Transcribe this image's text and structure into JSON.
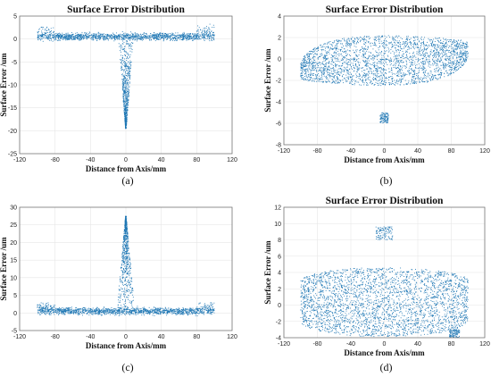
{
  "chart_data": [
    {
      "type": "scatter",
      "label": "(a)",
      "title": "Surface Error Distribution",
      "xlabel": "Distance from Axis/mm",
      "ylabel": "Surface Error /um",
      "xlim": [
        -120,
        120
      ],
      "ylim": [
        -25,
        5
      ],
      "xticks": [
        -120,
        -80,
        -40,
        0,
        40,
        80,
        120
      ],
      "yticks": [
        5,
        0,
        -5,
        -10,
        -15,
        -20,
        -25
      ],
      "grid": true,
      "color": "#1f77b4",
      "features": [
        {
          "shape": "band",
          "x": [
            -100,
            100
          ],
          "y_center": 0.5,
          "y_spread": 1.2,
          "wing_up": [
            -90,
            1.8,
            90,
            2.0
          ]
        },
        {
          "shape": "spike",
          "x_center": 0,
          "half_width": 8,
          "y_base": 0,
          "y_tip": -19.5
        }
      ]
    },
    {
      "type": "scatter",
      "label": "(b)",
      "title": "Surface Error Distribution",
      "xlabel": "Distance from Axis/mm",
      "ylabel": "Surface Error /um",
      "xlim": [
        -120,
        120
      ],
      "ylim": [
        -8,
        4
      ],
      "xticks": [
        -120,
        -80,
        -40,
        0,
        40,
        80,
        120
      ],
      "yticks": [
        4,
        2,
        0,
        -2,
        -4,
        -6,
        -8
      ],
      "grid": true,
      "color": "#1f77b4",
      "features": [
        {
          "shape": "lens",
          "x": [
            -100,
            100
          ],
          "y_top_center": 1.6,
          "y_bottom_center": -1.9,
          "y_edges": [
            -1.2,
            1.0
          ]
        },
        {
          "shape": "cluster",
          "x": [
            -5,
            5
          ],
          "y": [
            -6.0,
            -5.0
          ]
        }
      ]
    },
    {
      "type": "scatter",
      "label": "(c)",
      "title": "",
      "xlabel": "Distance from Axis/mm",
      "ylabel": "Surface Error /um",
      "xlim": [
        -120,
        120
      ],
      "ylim": [
        -5,
        30
      ],
      "xticks": [
        -120,
        -80,
        -40,
        0,
        40,
        80,
        120
      ],
      "yticks": [
        30,
        25,
        20,
        15,
        10,
        5,
        0,
        -5
      ],
      "grid": true,
      "color": "#1f77b4",
      "features": [
        {
          "shape": "band",
          "x": [
            -100,
            100
          ],
          "y_center": 0.5,
          "y_spread": 1.5,
          "wing_up": [
            -90,
            2.0,
            90,
            2.5
          ]
        },
        {
          "shape": "spike",
          "x_center": 0,
          "half_width": 10,
          "y_base": 0,
          "y_tip": 27.5
        }
      ]
    },
    {
      "type": "scatter",
      "label": "(d)",
      "title": "Surface Error Distribution",
      "xlabel": "Distance from Axis/mm",
      "ylabel": "Surface Error /um",
      "xlim": [
        -120,
        120
      ],
      "ylim": [
        -4,
        12
      ],
      "xticks": [
        -120,
        -80,
        -40,
        0,
        40,
        80,
        120
      ],
      "yticks": [
        12,
        10,
        8,
        6,
        4,
        2,
        0,
        -2,
        -4
      ],
      "grid": true,
      "color": "#1f77b4",
      "features": [
        {
          "shape": "dome",
          "x": [
            -100,
            100
          ],
          "y_top_center": 4.6,
          "y_bottom": -3.9,
          "y_edges": [
            -2.0,
            3.0
          ]
        },
        {
          "shape": "cluster",
          "x": [
            -10,
            10
          ],
          "y": [
            8.0,
            9.6
          ]
        },
        {
          "shape": "cluster",
          "x": [
            78,
            90
          ],
          "y": [
            -4.0,
            -3.0
          ]
        }
      ]
    }
  ]
}
